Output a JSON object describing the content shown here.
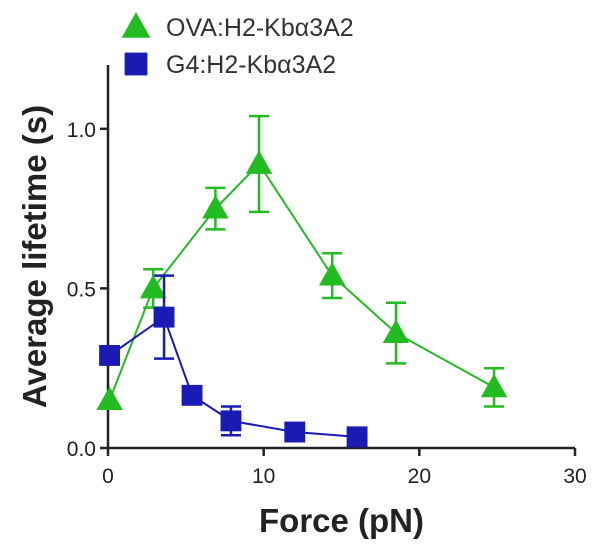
{
  "chart_data": {
    "type": "line",
    "title": "",
    "xlabel": "Force (pN)",
    "ylabel": "Average lifetime (s)",
    "xlim": [
      0,
      30
    ],
    "ylim": [
      0,
      1.2
    ],
    "xticks": [
      0,
      10,
      20,
      30
    ],
    "xtick_labels": [
      "0",
      "10",
      "20",
      "30"
    ],
    "yticks": [
      0,
      0.5,
      1.0
    ],
    "ytick_labels": [
      "0.0",
      "0.5",
      "1.0"
    ],
    "grid": false,
    "legend_position": "top-left",
    "series": [
      {
        "name": "OVA:H2-Kbα3A2",
        "color": "#22bb22",
        "marker": "triangle",
        "points": [
          {
            "x": 0.1,
            "y": 0.15,
            "err": 0
          },
          {
            "x": 2.9,
            "y": 0.5,
            "err": 0.06
          },
          {
            "x": 6.9,
            "y": 0.75,
            "err": 0.065
          },
          {
            "x": 9.7,
            "y": 0.89,
            "err": 0.15
          },
          {
            "x": 14.4,
            "y": 0.54,
            "err": 0.07
          },
          {
            "x": 18.5,
            "y": 0.36,
            "err": 0.095
          },
          {
            "x": 24.8,
            "y": 0.19,
            "err": 0.06
          }
        ]
      },
      {
        "name": "G4:H2-Kbα3A2",
        "color": "#1a1ab4",
        "marker": "square",
        "points": [
          {
            "x": 0.1,
            "y": 0.29,
            "err": 0
          },
          {
            "x": 3.6,
            "y": 0.41,
            "err": 0.13
          },
          {
            "x": 5.4,
            "y": 0.165,
            "err": 0.02
          },
          {
            "x": 7.9,
            "y": 0.085,
            "err": 0.045
          },
          {
            "x": 12.0,
            "y": 0.05,
            "err": 0.01
          },
          {
            "x": 16.0,
            "y": 0.035,
            "err": 0.005
          }
        ]
      }
    ]
  }
}
